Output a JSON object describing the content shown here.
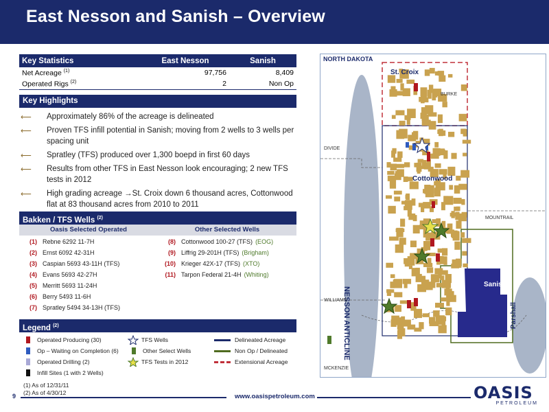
{
  "title": "East Nesson and Sanish – Overview",
  "key_stats": {
    "header": "Key Statistics",
    "col1": "East Nesson",
    "col2": "Sanish",
    "rows": [
      {
        "label": "Net Acreage",
        "sup": "(1)",
        "v1": "97,756",
        "v2": "8,409"
      },
      {
        "label": "Operated Rigs",
        "sup": "(2)",
        "v1": "2",
        "v2": "Non Op"
      }
    ]
  },
  "highlights": {
    "header": "Key Highlights",
    "items": [
      "Approximately 86% of the acreage is delineated",
      "Proven TFS infill potential in Sanish; moving from 2 wells to 3 wells per spacing unit",
      "Spratley (TFS) produced over 1,300 boepd in first 60 days",
      "Results from other TFS in East Nesson look encouraging; 2 new TFS tests in 2012",
      "High grading acreage →St. Croix down 6 thousand acres, Cottonwood flat at 83 thousand acres from 2010 to 2011"
    ]
  },
  "wells": {
    "header": "Bakken / TFS Wells",
    "sup": "(2)",
    "left_header": "Oasis Selected Operated",
    "right_header": "Other Selected Wells",
    "left": [
      {
        "num": "(1)",
        "name": "Rebne 6292 11-7H"
      },
      {
        "num": "(2)",
        "name": "Ernst 6092 42-31H"
      },
      {
        "num": "(3)",
        "name": "Caspian 5693 43-11H (TFS)"
      },
      {
        "num": "(4)",
        "name": "Evans 5693 42-27H"
      },
      {
        "num": "(5)",
        "name": "Merritt 5693 11-24H"
      },
      {
        "num": "(6)",
        "name": "Berry 5493 11-6H"
      },
      {
        "num": "(7)",
        "name": "Spratley 5494 34-13H (TFS)"
      }
    ],
    "right": [
      {
        "num": "(8)",
        "name": "Cottonwood 100-27 (TFS)",
        "op": "(EOG)"
      },
      {
        "num": "(9)",
        "name": "Liffrig 29-201H (TFS)",
        "op": "(Brigham)"
      },
      {
        "num": "(10)",
        "name": "Krieger 42X-17 (TFS)",
        "op": "(XTO)"
      },
      {
        "num": "(11)",
        "name": "Tarpon Federal 21-4H",
        "op": "(Whiting)"
      }
    ]
  },
  "legend": {
    "header": "Legend",
    "sup": "(2)",
    "items": [
      {
        "label": "Operated Producing (30)",
        "color": "#b0171f",
        "kind": "swatch"
      },
      {
        "label": "Op – Waiting on Completion (6)",
        "color": "#2e5bbf",
        "kind": "swatch"
      },
      {
        "label": "Operated Drilling (2)",
        "color": "#a9a9d6",
        "kind": "swatch"
      },
      {
        "label": "Infill Sites (1 with 2 Wells)",
        "color": "#111111",
        "kind": "swatch"
      },
      {
        "label": "TFS Wells",
        "kind": "star-outline"
      },
      {
        "label": "Other Select Wells",
        "color": "#4f7a2b",
        "kind": "swatch"
      },
      {
        "label": "TFS Tests in 2012",
        "kind": "star-fill"
      },
      {
        "label": "Delineated Acreage",
        "color": "#1b2a6b",
        "kind": "line"
      },
      {
        "label": "Non Op / Delineated",
        "color": "#4f6b1f",
        "kind": "line"
      },
      {
        "label": "Extensional Acreage",
        "color": "#c0313a",
        "kind": "dash"
      }
    ]
  },
  "notes": [
    "(1)   As of 12/31/11",
    "(2)   As of 4/30/12"
  ],
  "page_number": "9",
  "website": "www.oasispetroleum.com",
  "logo": {
    "word": "OASIS",
    "sub": "PETROLEUM"
  },
  "map": {
    "state": "NORTH DAKOTA",
    "areas": [
      "St. Croix",
      "Cottonwood",
      "Sanish",
      "Parshall"
    ],
    "anticline": "NESSON ANTICLINE",
    "counties": [
      "BURKE",
      "DIVIDE",
      "MOUNTRAIL",
      "WILLIAMS",
      "MCKENZIE"
    ]
  }
}
